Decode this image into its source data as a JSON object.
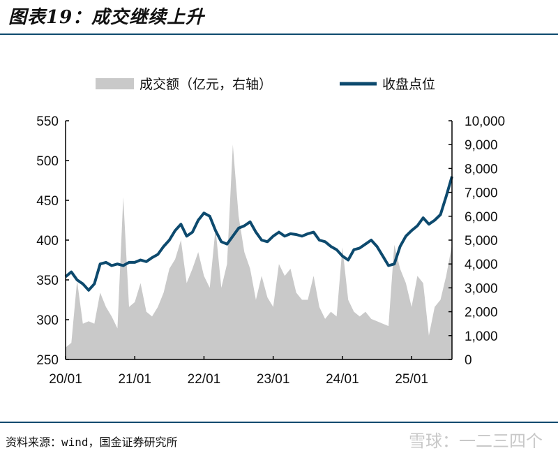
{
  "title": "图表19：成交继续上升",
  "footer": {
    "source": "资料来源：wind，国金证券研究所",
    "watermark": "雪球：一二三四个"
  },
  "colors": {
    "line": "#0d4a6e",
    "area": "#c9c9c9",
    "rule": "#0d4a6e"
  },
  "chart_data": {
    "type": "area+line",
    "legend_placement": "top",
    "grid": false,
    "x_tick_labels": [
      "20/01",
      "21/01",
      "22/01",
      "23/01",
      "24/01",
      "25/01"
    ],
    "x_ticks": [
      "2020-01",
      "2021-01",
      "2022-01",
      "2023-01",
      "2024-01",
      "2025-01"
    ],
    "x": [
      "2020-01",
      "2020-02",
      "2020-03",
      "2020-04",
      "2020-05",
      "2020-06",
      "2020-07",
      "2020-08",
      "2020-09",
      "2020-10",
      "2020-11",
      "2020-12",
      "2021-01",
      "2021-02",
      "2021-03",
      "2021-04",
      "2021-05",
      "2021-06",
      "2021-07",
      "2021-08",
      "2021-09",
      "2021-10",
      "2021-11",
      "2021-12",
      "2022-01",
      "2022-02",
      "2022-03",
      "2022-04",
      "2022-05",
      "2022-06",
      "2022-07",
      "2022-08",
      "2022-09",
      "2022-10",
      "2022-11",
      "2022-12",
      "2023-01",
      "2023-02",
      "2023-03",
      "2023-04",
      "2023-05",
      "2023-06",
      "2023-07",
      "2023-08",
      "2023-09",
      "2023-10",
      "2023-11",
      "2023-12",
      "2024-01",
      "2024-02",
      "2024-03",
      "2024-04",
      "2024-05",
      "2024-06",
      "2024-07",
      "2024-08",
      "2024-09",
      "2024-10",
      "2024-11",
      "2024-12",
      "2025-01",
      "2025-02",
      "2025-03",
      "2025-04",
      "2025-05",
      "2025-06",
      "2025-07",
      "2025-08"
    ],
    "left_axis": {
      "ylim": [
        250,
        550
      ],
      "ticks": [
        "250",
        "300",
        "350",
        "400",
        "450",
        "500",
        "550"
      ]
    },
    "right_axis": {
      "ylim": [
        0,
        10000
      ],
      "ticks": [
        "0",
        "1,000",
        "2,000",
        "3,000",
        "4,000",
        "5,000",
        "6,000",
        "7,000",
        "8,000",
        "9,000",
        "10,000"
      ]
    },
    "series": [
      {
        "name": "成交额（亿元，右轴）",
        "type": "area",
        "axis": "right",
        "values": [
          500,
          700,
          3300,
          1500,
          1600,
          1500,
          2800,
          2200,
          1800,
          1300,
          6800,
          2200,
          2400,
          3200,
          2000,
          1800,
          2200,
          2800,
          3800,
          4200,
          5000,
          3200,
          3800,
          4500,
          3500,
          3000,
          5500,
          3000,
          4000,
          9000,
          6000,
          4500,
          3800,
          2500,
          3500,
          2600,
          2200,
          4000,
          3500,
          3800,
          2800,
          2500,
          2500,
          3500,
          2200,
          1700,
          2000,
          1800,
          4700,
          2500,
          2000,
          1800,
          2000,
          1700,
          1600,
          1500,
          1400,
          4800,
          3800,
          3200,
          2200,
          3500,
          3200,
          1000,
          2200,
          2500,
          3500,
          4800
        ]
      },
      {
        "name": "收盘点位",
        "type": "line",
        "axis": "left",
        "values": [
          354,
          360,
          350,
          345,
          337,
          345,
          370,
          372,
          368,
          370,
          368,
          372,
          372,
          375,
          373,
          378,
          382,
          392,
          400,
          412,
          420,
          405,
          410,
          425,
          434,
          430,
          412,
          398,
          395,
          405,
          415,
          418,
          423,
          410,
          400,
          398,
          405,
          410,
          405,
          408,
          407,
          405,
          408,
          410,
          400,
          398,
          392,
          388,
          380,
          375,
          388,
          390,
          395,
          400,
          392,
          380,
          368,
          370,
          392,
          405,
          412,
          418,
          428,
          420,
          425,
          432,
          455,
          480
        ]
      }
    ]
  }
}
